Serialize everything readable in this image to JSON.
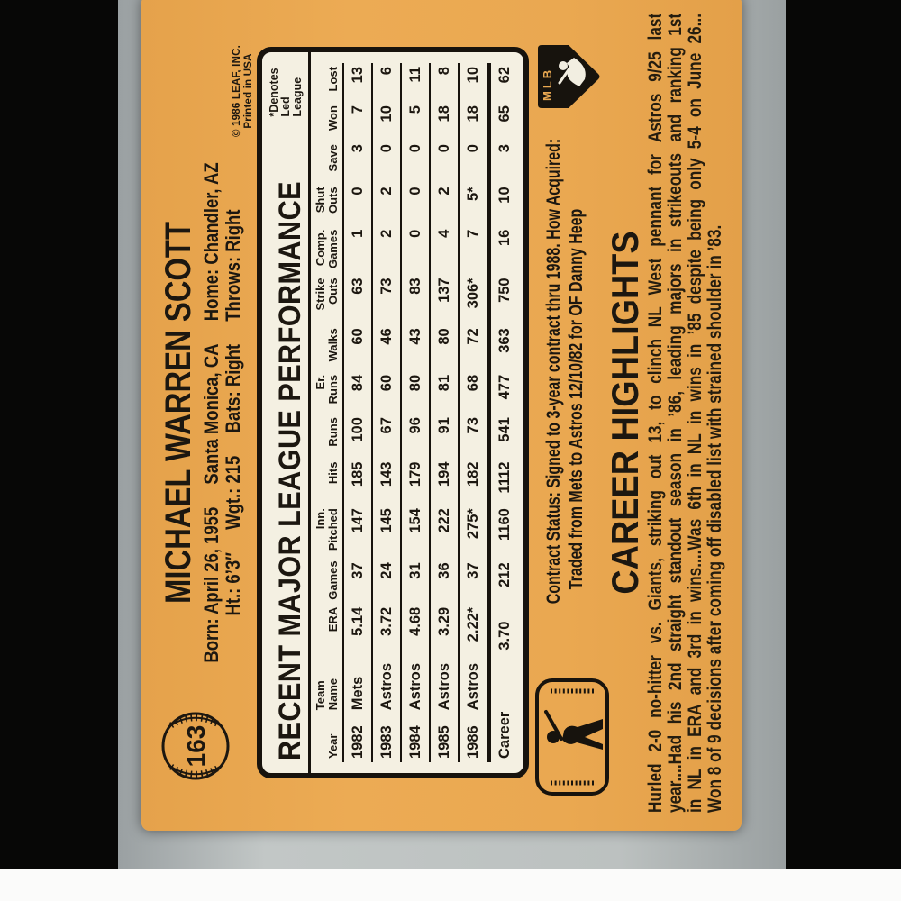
{
  "scene": {
    "backdrop_color": "#070706",
    "mat_color": "#bcc1c0",
    "page_color": "#fbfbfa",
    "card_color": "#eaa851",
    "panel_color": "#f4f0e2",
    "ink_color": "#1c1710"
  },
  "card": {
    "number": "163",
    "name": "MICHAEL WARREN SCOTT",
    "bio1": [
      "Born: April 26, 1955",
      "Santa Monica, CA",
      "Home: Chandler, AZ"
    ],
    "bio2": [
      "Ht.: 6’3″",
      "Wgt.: 215",
      "Bats: Right",
      "Throws: Right"
    ],
    "copyright1": "© 1986 LEAF, INC.",
    "copyright2": "Printed in USA",
    "stats": {
      "title": "RECENT MAJOR LEAGUE PERFORMANCE",
      "denotes1": "*Denotes",
      "denotes2": "Led League",
      "headers": [
        {
          "top": "",
          "bot": "Year"
        },
        {
          "top": "Team",
          "bot": "Name"
        },
        {
          "top": "",
          "bot": "ERA"
        },
        {
          "top": "",
          "bot": "Games"
        },
        {
          "top": "Inn.",
          "bot": "Pitched"
        },
        {
          "top": "",
          "bot": "Hits"
        },
        {
          "top": "",
          "bot": "Runs"
        },
        {
          "top": "Er.",
          "bot": "Runs"
        },
        {
          "top": "",
          "bot": "Walks"
        },
        {
          "top": "Strike",
          "bot": "Outs"
        },
        {
          "top": "Comp.",
          "bot": "Games"
        },
        {
          "top": "Shut",
          "bot": "Outs"
        },
        {
          "top": "",
          "bot": "Save"
        },
        {
          "top": "",
          "bot": "Won"
        },
        {
          "top": "",
          "bot": "Lost"
        }
      ],
      "rows": [
        [
          "1982",
          "Mets",
          "5.14",
          "37",
          "147",
          "185",
          "100",
          "84",
          "60",
          "63",
          "1",
          "0",
          "3",
          "7",
          "13"
        ],
        [
          "1983",
          "Astros",
          "3.72",
          "24",
          "145",
          "143",
          "67",
          "60",
          "46",
          "73",
          "2",
          "2",
          "0",
          "10",
          "6"
        ],
        [
          "1984",
          "Astros",
          "4.68",
          "31",
          "154",
          "179",
          "96",
          "80",
          "43",
          "83",
          "0",
          "0",
          "0",
          "5",
          "11"
        ],
        [
          "1985",
          "Astros",
          "3.29",
          "36",
          "222",
          "194",
          "91",
          "81",
          "80",
          "137",
          "4",
          "2",
          "0",
          "18",
          "8"
        ],
        [
          "1986",
          "Astros",
          "2.22*",
          "37",
          "275*",
          "182",
          "73",
          "68",
          "72",
          "306*",
          "7",
          "5*",
          "0",
          "18",
          "10"
        ]
      ],
      "career": {
        "label": "Career",
        "values": [
          "3.70",
          "212",
          "1160",
          "1112",
          "541",
          "477",
          "363",
          "750",
          "16",
          "10",
          "3",
          "65",
          "62"
        ]
      }
    },
    "contract_line1": "Contract Status: Signed to 3-year contract thru 1988. How Acquired:",
    "contract_line2": "Traded from Mets to Astros 12/10/82 for OF Danny Heep",
    "highlights_title": "CAREER HIGHLIGHTS",
    "highlights_lines": [
      "Hurled 2-0 no-hitter vs. Giants, striking out 13, to clinch NL West pennant for Astros 9/25 last",
      "year....Had his 2nd straight standout season in ’86, leading majors in strikeouts and ranking 1st",
      "in NL in ERA and 3rd in wins....Was 6th in NL in wins in ’85 despite being only 5-4 on June 26...",
      "Won 8 of 9 decisions after coming off disabled list with strained shoulder in ’83."
    ],
    "logos": {
      "mlb": "MLB shield logo",
      "mlbpa": "MLB Players Association logo"
    }
  }
}
